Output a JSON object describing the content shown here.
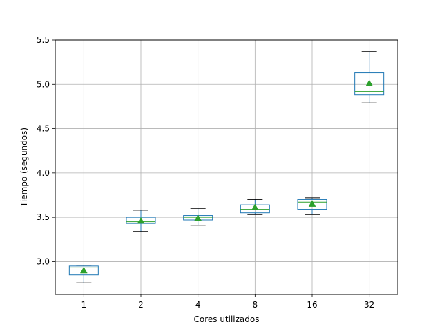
{
  "chart_data": {
    "type": "box",
    "title": "",
    "xlabel": "Cores utilizados",
    "ylabel": "Tiempo (segundos)",
    "categories": [
      "1",
      "2",
      "4",
      "8",
      "16",
      "32"
    ],
    "ylim": [
      2.63,
      5.5
    ],
    "yticks": [
      3.0,
      3.5,
      4.0,
      4.5,
      5.0,
      5.5
    ],
    "ytick_labels": [
      "3.0",
      "3.5",
      "4.0",
      "4.5",
      "5.0",
      "5.5"
    ],
    "grid": true,
    "boxes": [
      {
        "category": "1",
        "whisker_low": 2.76,
        "q1": 2.85,
        "median": 2.93,
        "q3": 2.95,
        "whisker_high": 2.96,
        "mean": 2.9
      },
      {
        "category": "2",
        "whisker_low": 3.34,
        "q1": 3.43,
        "median": 3.45,
        "q3": 3.5,
        "whisker_high": 3.58,
        "mean": 3.46
      },
      {
        "category": "4",
        "whisker_low": 3.41,
        "q1": 3.47,
        "median": 3.5,
        "q3": 3.52,
        "whisker_high": 3.6,
        "mean": 3.49
      },
      {
        "category": "8",
        "whisker_low": 3.53,
        "q1": 3.55,
        "median": 3.59,
        "q3": 3.64,
        "whisker_high": 3.7,
        "mean": 3.61
      },
      {
        "category": "16",
        "whisker_low": 3.53,
        "q1": 3.59,
        "median": 3.67,
        "q3": 3.7,
        "whisker_high": 3.72,
        "mean": 3.65
      },
      {
        "category": "32",
        "whisker_low": 4.79,
        "q1": 4.88,
        "median": 4.92,
        "q3": 5.13,
        "whisker_high": 5.37,
        "mean": 5.01
      }
    ],
    "colors": {
      "box": "#1f77b4",
      "median": "#2ca02c",
      "mean_marker": "#2ca02c",
      "whisker_cap": "#000000",
      "grid": "#b0b0b0",
      "axes": "#000000"
    },
    "mean_marker": "triangle"
  }
}
